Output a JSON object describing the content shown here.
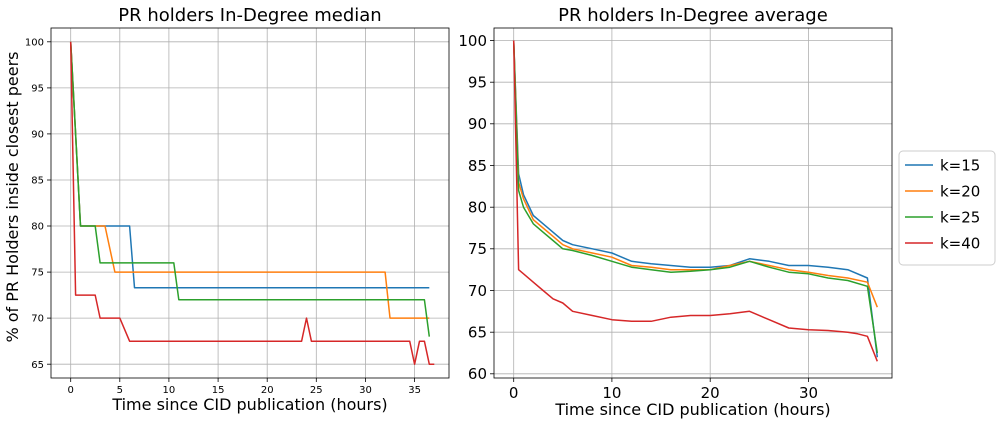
{
  "figure": {
    "ylabel": "% of PR Holders inside closest peers",
    "legend": {
      "placement": "right-outside",
      "entries": [
        "k=15",
        "k=20",
        "k=25",
        "k=40"
      ]
    }
  },
  "chart_data": [
    {
      "type": "line",
      "title": "PR holders In-Degree median",
      "xlabel": "Time since CID publication (hours)",
      "ylabel": "% of PR Holders inside closest peers",
      "xlim": [
        -2,
        38.5
      ],
      "ylim": [
        63.5,
        101.5
      ],
      "xticks": [
        0,
        5,
        10,
        15,
        20,
        25,
        30,
        35
      ],
      "yticks": [
        65,
        70,
        75,
        80,
        85,
        90,
        95,
        100
      ],
      "grid": true,
      "series": [
        {
          "name": "k=15",
          "color": "#1f77b4",
          "points": [
            [
              0,
              100
            ],
            [
              0.5,
              90
            ],
            [
              1,
              80
            ],
            [
              6,
              80
            ],
            [
              6.5,
              73.3
            ],
            [
              36.5,
              73.3
            ]
          ]
        },
        {
          "name": "k=20",
          "color": "#ff7f0e",
          "points": [
            [
              0,
              100
            ],
            [
              0.5,
              90
            ],
            [
              1,
              80
            ],
            [
              3.5,
              80
            ],
            [
              4.5,
              75
            ],
            [
              32,
              75
            ],
            [
              32.5,
              70
            ],
            [
              36.5,
              70
            ]
          ]
        },
        {
          "name": "k=25",
          "color": "#2ca02c",
          "points": [
            [
              0,
              100
            ],
            [
              0.5,
              90
            ],
            [
              1,
              80
            ],
            [
              2.5,
              80
            ],
            [
              3,
              76
            ],
            [
              10.5,
              76
            ],
            [
              11,
              72
            ],
            [
              36,
              72
            ],
            [
              36.5,
              68
            ]
          ]
        },
        {
          "name": "k=40",
          "color": "#d62728",
          "points": [
            [
              0,
              100
            ],
            [
              0.5,
              72.5
            ],
            [
              2.5,
              72.5
            ],
            [
              3,
              70
            ],
            [
              5,
              70
            ],
            [
              6,
              67.5
            ],
            [
              23.5,
              67.5
            ],
            [
              24,
              70
            ],
            [
              24.5,
              67.5
            ],
            [
              34.5,
              67.5
            ],
            [
              35,
              65
            ],
            [
              35.5,
              67.5
            ],
            [
              36,
              67.5
            ],
            [
              36.5,
              65
            ],
            [
              37,
              65
            ]
          ]
        }
      ]
    },
    {
      "type": "line",
      "title": "PR holders In-Degree average",
      "xlabel": "Time since CID publication (hours)",
      "ylabel": "",
      "xlim": [
        -2,
        38.5
      ],
      "ylim": [
        59.5,
        101.5
      ],
      "xticks": [
        0,
        10,
        20,
        30
      ],
      "yticks": [
        60,
        65,
        70,
        75,
        80,
        85,
        90,
        95,
        100
      ],
      "grid": true,
      "series": [
        {
          "name": "k=15",
          "color": "#1f77b4",
          "points": [
            [
              0,
              100
            ],
            [
              0.5,
              84
            ],
            [
              1,
              81.5
            ],
            [
              2,
              79
            ],
            [
              3,
              78
            ],
            [
              4,
              77
            ],
            [
              5,
              76
            ],
            [
              6,
              75.5
            ],
            [
              8,
              75
            ],
            [
              10,
              74.5
            ],
            [
              12,
              73.5
            ],
            [
              14,
              73.2
            ],
            [
              16,
              73
            ],
            [
              18,
              72.8
            ],
            [
              20,
              72.8
            ],
            [
              22,
              73
            ],
            [
              24,
              73.8
            ],
            [
              26,
              73.5
            ],
            [
              28,
              73
            ],
            [
              30,
              73
            ],
            [
              32,
              72.8
            ],
            [
              34,
              72.5
            ],
            [
              36,
              71.5
            ],
            [
              37,
              62
            ]
          ]
        },
        {
          "name": "k=20",
          "color": "#ff7f0e",
          "points": [
            [
              0,
              100
            ],
            [
              0.5,
              83
            ],
            [
              1,
              81
            ],
            [
              2,
              78.5
            ],
            [
              3,
              77.5
            ],
            [
              4,
              76.5
            ],
            [
              5,
              75.5
            ],
            [
              6,
              75
            ],
            [
              8,
              74.5
            ],
            [
              10,
              74
            ],
            [
              12,
              73
            ],
            [
              14,
              72.8
            ],
            [
              16,
              72.5
            ],
            [
              18,
              72.5
            ],
            [
              20,
              72.5
            ],
            [
              22,
              73
            ],
            [
              24,
              73.5
            ],
            [
              26,
              73
            ],
            [
              28,
              72.5
            ],
            [
              30,
              72.2
            ],
            [
              32,
              71.8
            ],
            [
              34,
              71.5
            ],
            [
              36,
              71
            ],
            [
              37,
              68
            ]
          ]
        },
        {
          "name": "k=25",
          "color": "#2ca02c",
          "points": [
            [
              0,
              100
            ],
            [
              0.5,
              82
            ],
            [
              1,
              80
            ],
            [
              2,
              78
            ],
            [
              3,
              77
            ],
            [
              4,
              76
            ],
            [
              5,
              75
            ],
            [
              6,
              74.8
            ],
            [
              8,
              74.2
            ],
            [
              10,
              73.5
            ],
            [
              12,
              72.8
            ],
            [
              14,
              72.5
            ],
            [
              16,
              72.2
            ],
            [
              18,
              72.3
            ],
            [
              20,
              72.5
            ],
            [
              22,
              72.8
            ],
            [
              24,
              73.5
            ],
            [
              26,
              72.8
            ],
            [
              28,
              72.2
            ],
            [
              30,
              72
            ],
            [
              32,
              71.5
            ],
            [
              34,
              71.2
            ],
            [
              36,
              70.5
            ],
            [
              37,
              62.5
            ]
          ]
        },
        {
          "name": "k=40",
          "color": "#d62728",
          "points": [
            [
              0,
              100
            ],
            [
              0.5,
              72.5
            ],
            [
              1,
              72
            ],
            [
              2,
              71
            ],
            [
              3,
              70
            ],
            [
              4,
              69
            ],
            [
              5,
              68.5
            ],
            [
              6,
              67.5
            ],
            [
              8,
              67
            ],
            [
              10,
              66.5
            ],
            [
              12,
              66.3
            ],
            [
              14,
              66.3
            ],
            [
              16,
              66.8
            ],
            [
              18,
              67
            ],
            [
              20,
              67
            ],
            [
              22,
              67.2
            ],
            [
              24,
              67.5
            ],
            [
              26,
              66.5
            ],
            [
              28,
              65.5
            ],
            [
              30,
              65.3
            ],
            [
              32,
              65.2
            ],
            [
              34,
              65
            ],
            [
              35,
              64.8
            ],
            [
              36,
              64.5
            ],
            [
              37,
              61.5
            ]
          ]
        }
      ]
    }
  ]
}
